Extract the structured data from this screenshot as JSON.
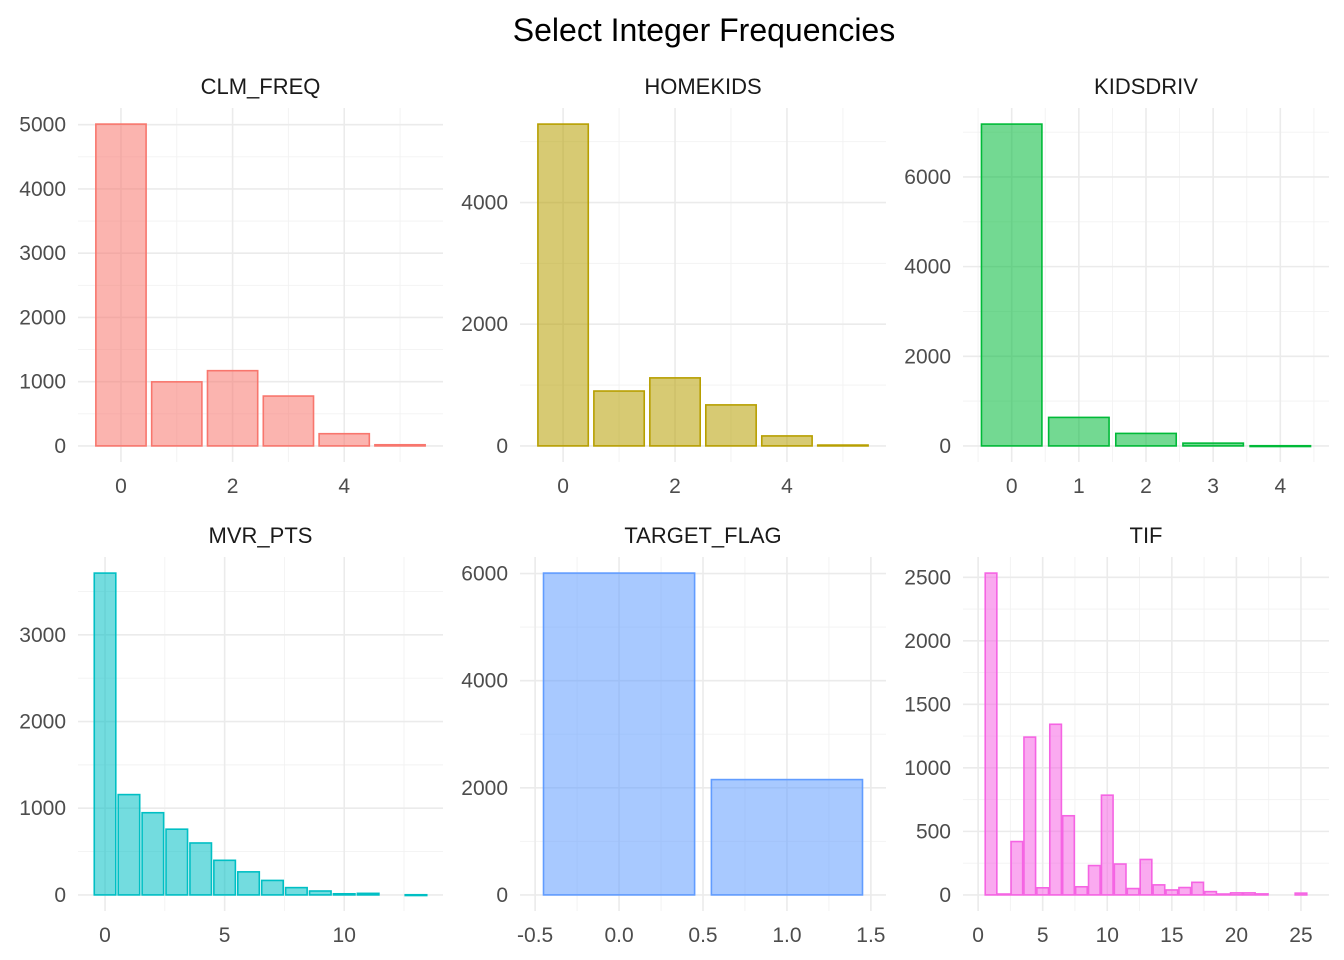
{
  "title": "Select Integer Frequencies",
  "chart_data": [
    {
      "type": "bar",
      "title": "CLM_FREQ",
      "color": "#F8766D",
      "x": [
        0,
        1,
        2,
        3,
        4,
        5
      ],
      "values": [
        5009,
        997,
        1171,
        776,
        190,
        18
      ],
      "xlim": [
        -0.5,
        5.5
      ],
      "ylim": [
        0,
        5009
      ],
      "xticks": [
        0,
        2,
        4
      ],
      "xtick_labels": [
        "0",
        "2",
        "4"
      ],
      "yticks": [
        0,
        1000,
        2000,
        3000,
        4000,
        5000
      ],
      "ytick_labels": [
        "0",
        "1000",
        "2000",
        "3000",
        "4000",
        "5000"
      ]
    },
    {
      "type": "bar",
      "title": "HOMEKIDS",
      "color": "#B79F00",
      "x": [
        0,
        1,
        2,
        3,
        4,
        5
      ],
      "values": [
        5289,
        902,
        1118,
        674,
        164,
        14
      ],
      "xlim": [
        -0.5,
        5.5
      ],
      "ylim": [
        0,
        5289
      ],
      "xticks": [
        0,
        2,
        4
      ],
      "xtick_labels": [
        "0",
        "2",
        "4"
      ],
      "yticks": [
        0,
        2000,
        4000
      ],
      "ytick_labels": [
        "0",
        "2000",
        "4000"
      ]
    },
    {
      "type": "bar",
      "title": "KIDSDRIV",
      "color": "#00BA38",
      "x": [
        0,
        1,
        2,
        3,
        4
      ],
      "values": [
        7180,
        636,
        279,
        62,
        4
      ],
      "xlim": [
        -0.5,
        4.5
      ],
      "ylim": [
        0,
        7180
      ],
      "xticks": [
        0,
        1,
        2,
        3,
        4
      ],
      "xtick_labels": [
        "0",
        "1",
        "2",
        "3",
        "4"
      ],
      "yticks": [
        0,
        2000,
        4000,
        6000
      ],
      "ytick_labels": [
        "0",
        "2000",
        "4000",
        "6000"
      ]
    },
    {
      "type": "bar",
      "title": "MVR_PTS",
      "color": "#00BFC4",
      "x": [
        0,
        1,
        2,
        3,
        4,
        5,
        6,
        7,
        8,
        9,
        10,
        11,
        13
      ],
      "values": [
        3712,
        1157,
        948,
        758,
        599,
        399,
        266,
        167,
        84,
        45,
        13,
        18,
        2
      ],
      "xlim": [
        -0.5,
        13.5
      ],
      "ylim": [
        0,
        3712
      ],
      "xticks": [
        0,
        5,
        10
      ],
      "xtick_labels": [
        "0",
        "5",
        "10"
      ],
      "yticks": [
        0,
        1000,
        2000,
        3000
      ],
      "ytick_labels": [
        "0",
        "1000",
        "2000",
        "3000"
      ]
    },
    {
      "type": "bar",
      "title": "TARGET_FLAG",
      "color": "#619CFF",
      "x": [
        0,
        1
      ],
      "values": [
        6008,
        2153
      ],
      "xlim": [
        -0.5,
        1.5
      ],
      "ylim": [
        0,
        6008
      ],
      "xticks": [
        -0.5,
        0,
        0.5,
        1,
        1.5
      ],
      "xtick_labels": [
        "-0.5",
        "0.0",
        "0.5",
        "1.0",
        "1.5"
      ],
      "yticks": [
        0,
        2000,
        4000,
        6000
      ],
      "ytick_labels": [
        "0",
        "2000",
        "4000",
        "6000"
      ]
    },
    {
      "type": "bar",
      "title": "TIF",
      "color": "#F564E3",
      "x": [
        1,
        2,
        3,
        4,
        5,
        6,
        7,
        8,
        9,
        10,
        11,
        12,
        13,
        14,
        15,
        16,
        17,
        18,
        19,
        20,
        21,
        22,
        25
      ],
      "values": [
        2533,
        7,
        420,
        1242,
        56,
        1343,
        623,
        64,
        231,
        785,
        243,
        50,
        279,
        79,
        39,
        58,
        99,
        26,
        7,
        16,
        16,
        8,
        14
      ],
      "xlim": [
        0,
        26
      ],
      "ylim": [
        0,
        2533
      ],
      "xticks": [
        0,
        5,
        10,
        15,
        20,
        25
      ],
      "xtick_labels": [
        "0",
        "5",
        "10",
        "15",
        "20",
        "25"
      ],
      "yticks": [
        0,
        500,
        1000,
        1500,
        2000,
        2500
      ],
      "ytick_labels": [
        "0",
        "500",
        "1000",
        "1500",
        "2000",
        "2500"
      ]
    }
  ]
}
